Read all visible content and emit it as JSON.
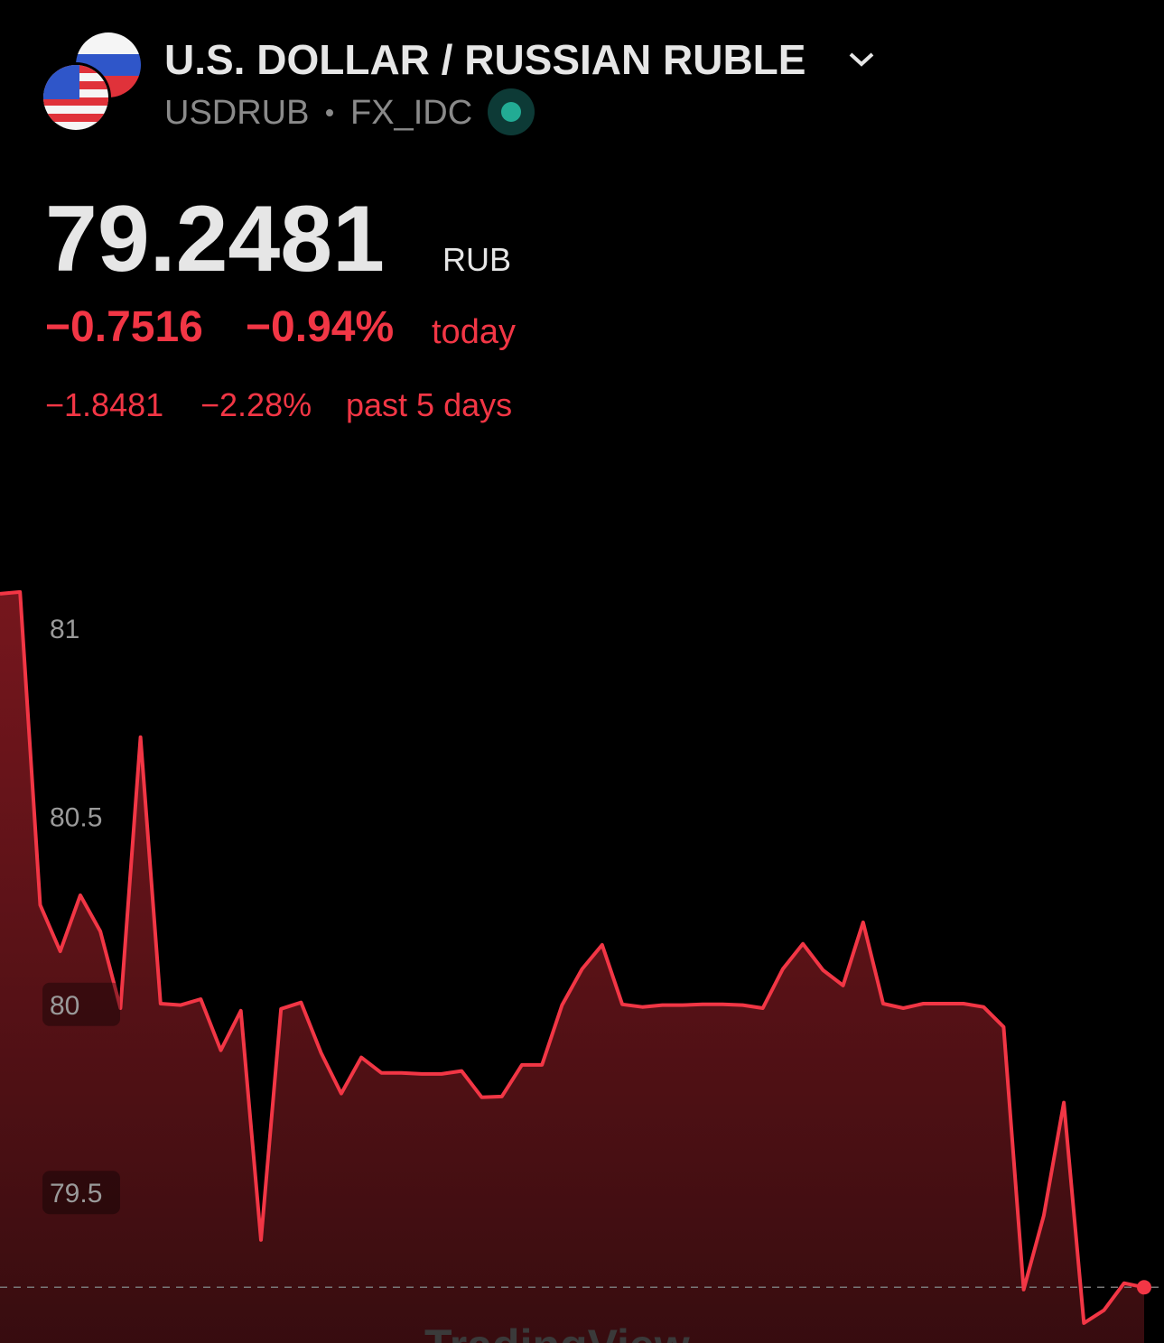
{
  "header": {
    "title": "U.S. DOLLAR / RUSSIAN RUBLE",
    "symbol": "USDRUB",
    "exchange": "FX_IDC",
    "price": "79.2481",
    "currency": "RUB",
    "change": "−0.7516",
    "change_pct": "−0.94%",
    "period": "today",
    "change_5d": "−1.8481",
    "change_pct_5d": "−2.28%",
    "period_5d": "past 5 days"
  },
  "watermark": "TradingView",
  "chart_data": {
    "type": "area",
    "color": "#f23645",
    "values": [
      81.091,
      81.096,
      80.264,
      80.141,
      80.29,
      80.194,
      79.99,
      80.71,
      80.002,
      79.998,
      80.014,
      79.878,
      79.983,
      79.374,
      79.988,
      80.005,
      79.871,
      79.763,
      79.859,
      79.818,
      79.818,
      79.815,
      79.815,
      79.823,
      79.753,
      79.755,
      79.839,
      79.839,
      79.998,
      80.094,
      80.158,
      80.0,
      79.993,
      79.998,
      79.998,
      80.0,
      80.0,
      79.998,
      79.99,
      80.094,
      80.161,
      80.091,
      80.05,
      80.218,
      80.002,
      79.99,
      80.002,
      80.002,
      80.002,
      79.993,
      79.94,
      79.242,
      79.439,
      79.739,
      79.153,
      79.187,
      79.259,
      79.248
    ],
    "ylim": [
      79.1,
      81.23
    ],
    "yticks": [
      79.5,
      80,
      80.5,
      81
    ]
  }
}
